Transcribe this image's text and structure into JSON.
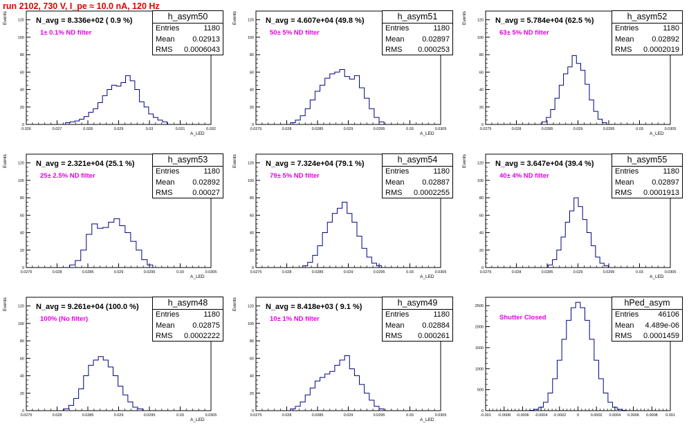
{
  "run_title": "run 2102,   730 V, I_pe ≈ 10.0 nA, 120 Hz",
  "chart_data": [
    {
      "type": "bar",
      "name": "h_asym50",
      "navg": "N_avg = 8.336e+02 ( 0.9 %)",
      "filter": "1± 0.1% ND filter",
      "stats": {
        "entries": "1180",
        "mean": "0.02913",
        "rms": "0.0006043"
      },
      "ylabel": "Events",
      "xlabel": "A_LED",
      "xlim": [
        0.026,
        0.032
      ],
      "ylim": [
        0,
        130
      ],
      "xticks": [
        "0.026",
        "0.027",
        "0.028",
        "0.029",
        "0.03",
        "0.031",
        "0.032"
      ],
      "xtick_values": [
        0.026,
        0.027,
        0.028,
        0.029,
        0.03,
        0.031,
        0.032
      ],
      "yticks": [
        0,
        20,
        40,
        60,
        80,
        100,
        120
      ],
      "x": [
        0.02735,
        0.0275,
        0.02765,
        0.0278,
        0.02795,
        0.0281,
        0.02825,
        0.0284,
        0.02855,
        0.0287,
        0.02885,
        0.029,
        0.02915,
        0.0293,
        0.02945,
        0.0296,
        0.02975,
        0.0299,
        0.03005,
        0.0302,
        0.03035,
        0.0305
      ],
      "values": [
        2,
        3,
        4,
        6,
        9,
        14,
        18,
        25,
        33,
        40,
        45,
        44,
        48,
        56,
        50,
        40,
        26,
        20,
        12,
        8,
        5,
        3
      ]
    },
    {
      "type": "bar",
      "name": "h_asym51",
      "navg": "N_avg = 4.607e+04 (49.8 %)",
      "filter": "50± 5% ND filter",
      "stats": {
        "entries": "1180",
        "mean": "0.02897",
        "rms": "0.000253"
      },
      "ylabel": "Events",
      "xlabel": "A_LED",
      "xlim": [
        0.0275,
        0.0305
      ],
      "ylim": [
        0,
        130
      ],
      "xticks": [
        "0.0275",
        "0.028",
        "0.0285",
        "0.029",
        "0.0295",
        "0.03",
        "0.0305"
      ],
      "xtick_values": [
        0.0275,
        0.028,
        0.0285,
        0.029,
        0.0295,
        0.03,
        0.0305
      ],
      "yticks": [
        0,
        20,
        40,
        60,
        80,
        100,
        120
      ],
      "x": [
        0.0281,
        0.02818,
        0.02826,
        0.02834,
        0.02842,
        0.0285,
        0.02858,
        0.02866,
        0.02874,
        0.02882,
        0.0289,
        0.02898,
        0.02906,
        0.02914,
        0.02922,
        0.0293,
        0.02938,
        0.02946,
        0.02954
      ],
      "values": [
        2,
        5,
        10,
        18,
        28,
        38,
        45,
        53,
        58,
        60,
        63,
        55,
        52,
        56,
        42,
        30,
        18,
        8,
        3
      ]
    },
    {
      "type": "bar",
      "name": "h_asym52",
      "navg": "N_avg = 5.784e+04 (62.5 %)",
      "filter": "63± 5% ND filter",
      "stats": {
        "entries": "1180",
        "mean": "0.02892",
        "rms": "0.0002019"
      },
      "ylabel": "Events",
      "xlabel": "A_LED",
      "xlim": [
        0.0275,
        0.0305
      ],
      "ylim": [
        0,
        130
      ],
      "xticks": [
        "0.0275",
        "0.028",
        "0.0285",
        "0.029",
        "0.0295",
        "0.03",
        "0.0305"
      ],
      "xtick_values": [
        0.0275,
        0.028,
        0.0285,
        0.029,
        0.0295,
        0.03,
        0.0305
      ],
      "yticks": [
        0,
        20,
        40,
        60,
        80,
        100,
        120
      ],
      "x": [
        0.02845,
        0.02852,
        0.02859,
        0.02866,
        0.02873,
        0.0288,
        0.02887,
        0.02894,
        0.02901,
        0.02908,
        0.02915,
        0.02922,
        0.02929,
        0.02936,
        0.02943
      ],
      "values": [
        3,
        8,
        17,
        30,
        45,
        58,
        66,
        79,
        70,
        62,
        46,
        28,
        15,
        6,
        2
      ]
    },
    {
      "type": "bar",
      "name": "h_asym53",
      "navg": "N_avg = 2.321e+04 (25.1 %)",
      "filter": "25± 2.5% ND filter",
      "stats": {
        "entries": "1180",
        "mean": "0.02892",
        "rms": "0.00027"
      },
      "ylabel": "Events",
      "xlabel": "A_LED",
      "xlim": [
        0.0275,
        0.0305
      ],
      "ylim": [
        0,
        130
      ],
      "xticks": [
        "0.0275",
        "0.028",
        "0.0285",
        "0.029",
        "0.0295",
        "0.03",
        "0.0305"
      ],
      "xtick_values": [
        0.0275,
        0.028,
        0.0285,
        0.029,
        0.0295,
        0.03,
        0.0305
      ],
      "yticks": [
        0,
        20,
        40,
        60,
        80,
        100,
        120
      ],
      "x": [
        0.02825,
        0.02834,
        0.02843,
        0.02852,
        0.02861,
        0.0287,
        0.02879,
        0.02888,
        0.02897,
        0.02906,
        0.02915,
        0.02924,
        0.02933,
        0.02942,
        0.02951
      ],
      "values": [
        3,
        8,
        20,
        38,
        50,
        45,
        46,
        52,
        56,
        48,
        40,
        30,
        20,
        9,
        3
      ]
    },
    {
      "type": "bar",
      "name": "h_asym54",
      "navg": "N_avg = 7.324e+04 (79.1 %)",
      "filter": "79± 5% ND filter",
      "stats": {
        "entries": "1180",
        "mean": "0.02887",
        "rms": "0.0002255"
      },
      "ylabel": "Events",
      "xlabel": "A_LED",
      "xlim": [
        0.0275,
        0.0305
      ],
      "ylim": [
        0,
        130
      ],
      "xticks": [
        "0.0275",
        "0.028",
        "0.0285",
        "0.029",
        "0.0295",
        "0.03",
        "0.0305"
      ],
      "xtick_values": [
        0.0275,
        0.028,
        0.0285,
        0.029,
        0.0295,
        0.03,
        0.0305
      ],
      "yticks": [
        0,
        20,
        40,
        60,
        80,
        100,
        120
      ],
      "x": [
        0.0283,
        0.02838,
        0.02846,
        0.02854,
        0.02862,
        0.0287,
        0.02878,
        0.02886,
        0.02894,
        0.02902,
        0.0291,
        0.02918,
        0.02926,
        0.02934,
        0.02942,
        0.0295
      ],
      "values": [
        2,
        6,
        14,
        25,
        40,
        52,
        62,
        68,
        75,
        62,
        52,
        36,
        22,
        12,
        5,
        2
      ]
    },
    {
      "type": "bar",
      "name": "h_asym55",
      "navg": "N_avg = 3.647e+04 (39.4 %)",
      "filter": "40± 4% ND filter",
      "stats": {
        "entries": "1180",
        "mean": "0.02897",
        "rms": "0.0001913"
      },
      "ylabel": "Events",
      "xlabel": "A_LED",
      "xlim": [
        0.0275,
        0.0305
      ],
      "ylim": [
        0,
        130
      ],
      "xticks": [
        "0.0275",
        "0.028",
        "0.0285",
        "0.029",
        "0.0295",
        "0.03",
        "0.0305"
      ],
      "xtick_values": [
        0.0275,
        0.028,
        0.0285,
        0.029,
        0.0295,
        0.03,
        0.0305
      ],
      "yticks": [
        0,
        20,
        40,
        60,
        80,
        100,
        120
      ],
      "x": [
        0.02855,
        0.02862,
        0.02869,
        0.02876,
        0.02883,
        0.0289,
        0.02897,
        0.02904,
        0.02911,
        0.02918,
        0.02925,
        0.02932,
        0.02939,
        0.02946
      ],
      "values": [
        3,
        9,
        20,
        35,
        52,
        65,
        80,
        70,
        55,
        40,
        25,
        12,
        5,
        2
      ]
    },
    {
      "type": "bar",
      "name": "h_asym48",
      "navg": "N_avg = 9.261e+04 (100.0 %)",
      "filter": "100% (No filter)",
      "stats": {
        "entries": "1180",
        "mean": "0.02875",
        "rms": "0.0002222"
      },
      "ylabel": "Events",
      "xlabel": "A_LED",
      "xlim": [
        0.0275,
        0.0305
      ],
      "ylim": [
        0,
        130
      ],
      "xticks": [
        "0.0275",
        "0.028",
        "0.0285",
        "0.029",
        "0.0295",
        "0.03",
        "0.0305"
      ],
      "xtick_values": [
        0.0275,
        0.028,
        0.0285,
        0.029,
        0.0295,
        0.03,
        0.0305
      ],
      "yticks": [
        0,
        20,
        40,
        60,
        80,
        100,
        120
      ],
      "x": [
        0.02815,
        0.02823,
        0.02831,
        0.02839,
        0.02847,
        0.02855,
        0.02863,
        0.02871,
        0.02879,
        0.02887,
        0.02895,
        0.02903,
        0.02911,
        0.02919,
        0.02927,
        0.02935
      ],
      "values": [
        2,
        6,
        14,
        25,
        40,
        52,
        58,
        62,
        58,
        50,
        40,
        28,
        18,
        10,
        4,
        2
      ]
    },
    {
      "type": "bar",
      "name": "h_asym49",
      "navg": "N_avg = 8.418e+03 ( 9.1 %)",
      "filter": "10± 1% ND filter",
      "stats": {
        "entries": "1180",
        "mean": "0.02884",
        "rms": "0.000261"
      },
      "ylabel": "Events",
      "xlabel": "A_LED",
      "xlim": [
        0.0275,
        0.0305
      ],
      "ylim": [
        0,
        130
      ],
      "xticks": [
        "0.0275",
        "0.028",
        "0.0285",
        "0.029",
        "0.0295",
        "0.03",
        "0.0305"
      ],
      "xtick_values": [
        0.0275,
        0.028,
        0.0285,
        0.029,
        0.0295,
        0.03,
        0.0305
      ],
      "yticks": [
        0,
        20,
        40,
        60,
        80,
        100,
        120
      ],
      "x": [
        0.0281,
        0.02818,
        0.02826,
        0.02834,
        0.02842,
        0.0285,
        0.02858,
        0.02866,
        0.02874,
        0.02882,
        0.0289,
        0.02898,
        0.02906,
        0.02914,
        0.02922,
        0.0293,
        0.02938,
        0.02946,
        0.02954
      ],
      "values": [
        2,
        5,
        10,
        18,
        26,
        34,
        38,
        42,
        45,
        52,
        58,
        63,
        48,
        40,
        30,
        20,
        12,
        5,
        2
      ]
    },
    {
      "type": "bar",
      "name": "hPed_asym",
      "navg": "",
      "filter": "Shutter Closed",
      "stats": {
        "entries": "46106",
        "mean": "4.489e-06",
        "rms": "0.0001459"
      },
      "ylabel": "",
      "xlabel": "",
      "xlim": [
        -0.001,
        0.001
      ],
      "ylim": [
        0,
        2700
      ],
      "xticks": [
        "-0.001",
        "-0.0008",
        "-0.0006",
        "-0.0004",
        "-0.0002",
        "0",
        "0.0002",
        "0.0004",
        "0.0006",
        "0.0008",
        "0.001"
      ],
      "xtick_values": [
        -0.001,
        -0.0008,
        -0.0006,
        -0.0004,
        -0.0002,
        0,
        0.0002,
        0.0004,
        0.0006,
        0.0008,
        0.001
      ],
      "yticks": [
        0,
        500,
        1000,
        1500,
        2000,
        2500
      ],
      "x": [
        -0.0005,
        -0.00045,
        -0.0004,
        -0.00035,
        -0.0003,
        -0.00025,
        -0.0002,
        -0.00015,
        -0.0001,
        -5e-05,
        0,
        5e-05,
        0.0001,
        0.00015,
        0.0002,
        0.00025,
        0.0003,
        0.00035,
        0.0004,
        0.00045,
        0.0005
      ],
      "values": [
        8,
        30,
        80,
        200,
        420,
        760,
        1200,
        1700,
        2150,
        2450,
        2580,
        2450,
        2150,
        1700,
        1200,
        760,
        420,
        200,
        80,
        30,
        8
      ]
    }
  ]
}
